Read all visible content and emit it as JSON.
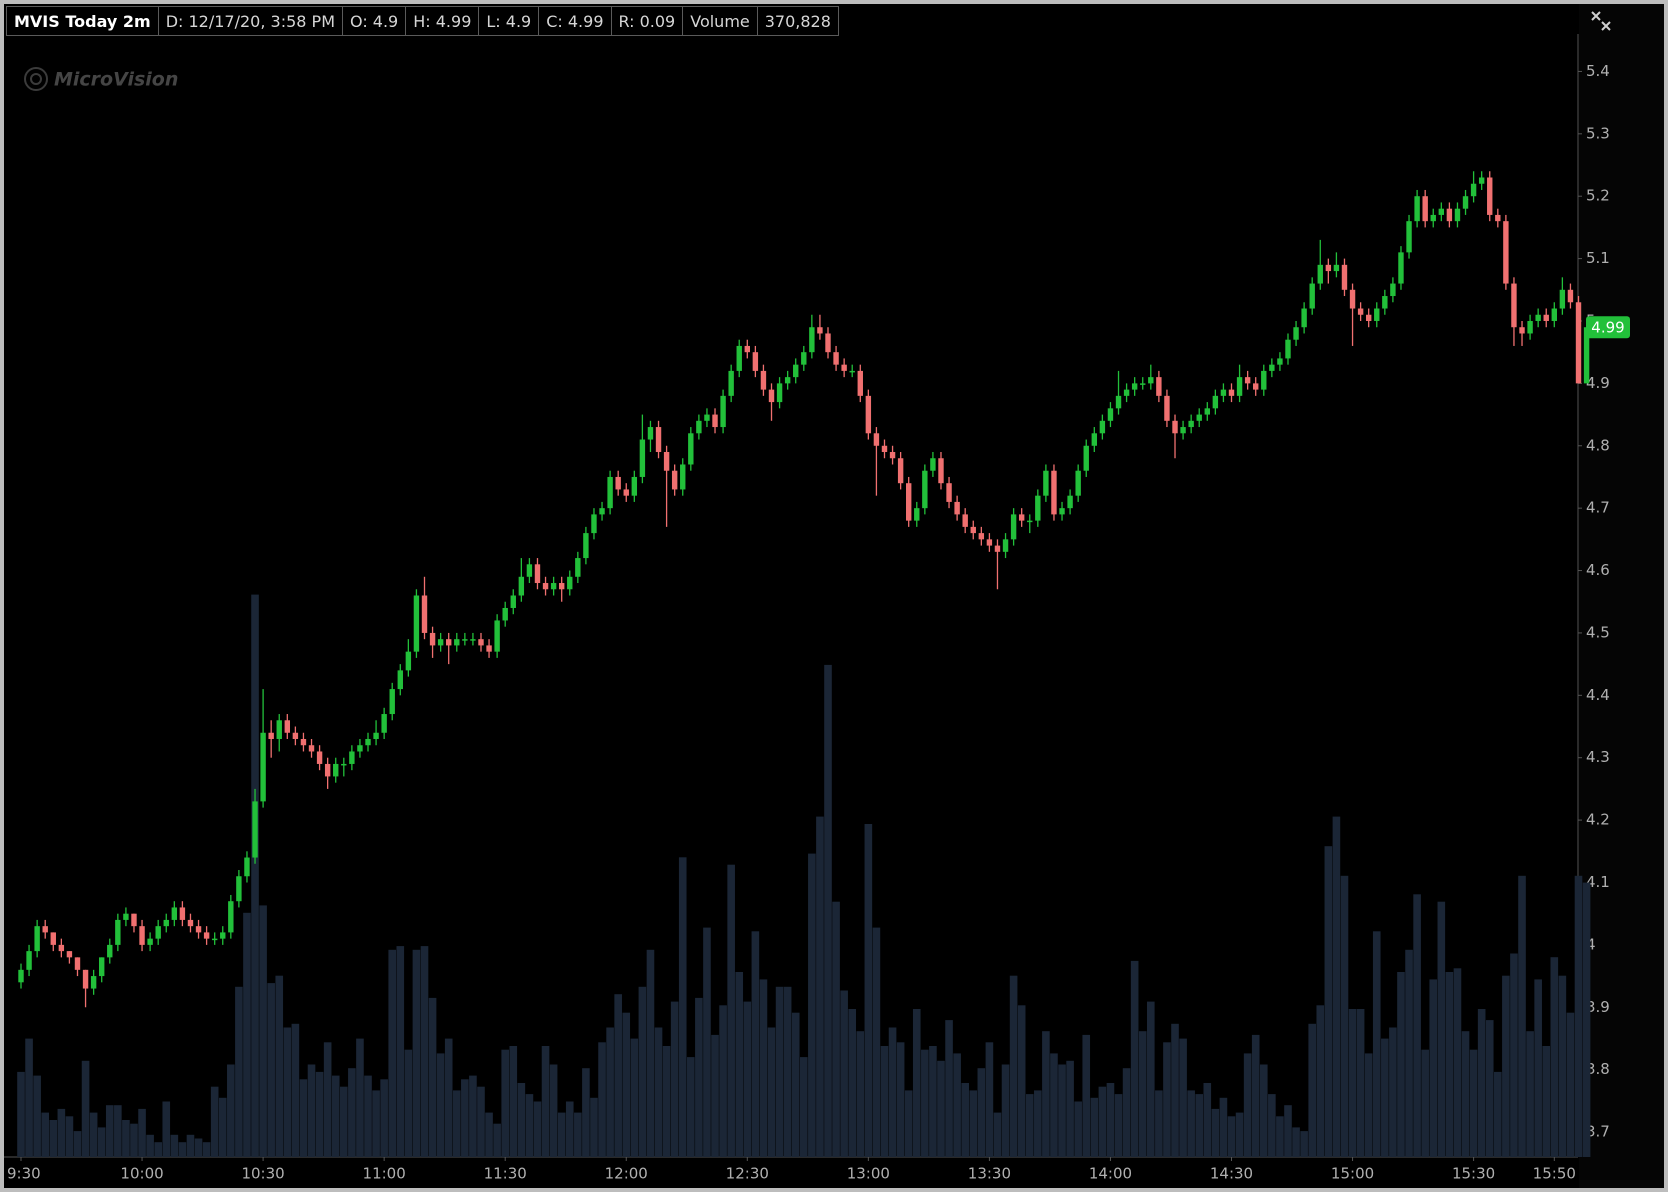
{
  "header": [
    "MVIS Today 2m",
    "D: 12/17/20, 3:58 PM",
    "O: 4.9",
    "H: 4.99",
    "L: 4.9",
    "C: 4.99",
    "R: 0.09",
    "Volume",
    "370,828"
  ],
  "chart_data": {
    "type": "candlestick",
    "watermark": "MicroVision",
    "up_color": "#22c03a",
    "down_color": "#f07070",
    "volume_color": "#1b2636",
    "ylim": [
      3.66,
      5.46
    ],
    "yticks": [
      5.4,
      5.3,
      5.2,
      5.1,
      5,
      4.9,
      4.8,
      4.7,
      4.6,
      4.5,
      4.4,
      4.3,
      4.2,
      4.1,
      4,
      3.9,
      3.8,
      3.7
    ],
    "categories": [
      "9:30",
      null,
      null,
      null,
      null,
      null,
      null,
      null,
      null,
      null,
      null,
      null,
      null,
      null,
      null,
      "10:00",
      null,
      null,
      null,
      null,
      null,
      null,
      null,
      null,
      null,
      null,
      null,
      null,
      null,
      null,
      "10:30",
      null,
      null,
      null,
      null,
      null,
      null,
      null,
      null,
      null,
      null,
      null,
      null,
      null,
      null,
      "11:00",
      null,
      null,
      null,
      null,
      null,
      null,
      null,
      null,
      null,
      null,
      null,
      null,
      null,
      null,
      "11:30",
      null,
      null,
      null,
      null,
      null,
      null,
      null,
      null,
      null,
      null,
      null,
      null,
      null,
      null,
      "12:00",
      null,
      null,
      null,
      null,
      null,
      null,
      null,
      null,
      null,
      null,
      null,
      null,
      null,
      null,
      "12:30",
      null,
      null,
      null,
      null,
      null,
      null,
      null,
      null,
      null,
      null,
      null,
      null,
      null,
      null,
      "13:00",
      null,
      null,
      null,
      null,
      null,
      null,
      null,
      null,
      null,
      null,
      null,
      null,
      null,
      null,
      "13:30",
      null,
      null,
      null,
      null,
      null,
      null,
      null,
      null,
      null,
      null,
      null,
      null,
      null,
      null,
      "14:00",
      null,
      null,
      null,
      null,
      null,
      null,
      null,
      null,
      null,
      null,
      null,
      null,
      null,
      null,
      "14:30",
      null,
      null,
      null,
      null,
      null,
      null,
      null,
      null,
      null,
      null,
      null,
      null,
      null,
      null,
      "15:00",
      null,
      null,
      null,
      null,
      null,
      null,
      null,
      null,
      null,
      null,
      null,
      null,
      null,
      null,
      "15:30",
      null,
      null,
      null,
      null,
      null,
      null,
      null,
      null,
      null,
      "15:50",
      null,
      null,
      null,
      null
    ],
    "open": [
      3.94,
      3.96,
      3.99,
      4.03,
      4.02,
      4.0,
      3.99,
      3.98,
      3.96,
      3.93,
      3.95,
      3.98,
      4.0,
      4.04,
      4.05,
      4.03,
      4.0,
      4.01,
      4.03,
      4.04,
      4.06,
      4.04,
      4.03,
      4.02,
      4.01,
      4.01,
      4.02,
      4.07,
      4.11,
      4.14,
      4.23,
      4.34,
      4.33,
      4.36,
      4.34,
      4.33,
      4.32,
      4.31,
      4.29,
      4.27,
      4.29,
      4.29,
      4.31,
      4.32,
      4.33,
      4.34,
      4.37,
      4.41,
      4.44,
      4.47,
      4.56,
      4.5,
      4.48,
      4.49,
      4.48,
      4.49,
      4.49,
      4.49,
      4.48,
      4.47,
      4.52,
      4.54,
      4.56,
      4.59,
      4.61,
      4.58,
      4.57,
      4.58,
      4.57,
      4.59,
      4.62,
      4.66,
      4.69,
      4.7,
      4.75,
      4.73,
      4.72,
      4.75,
      4.81,
      4.83,
      4.79,
      4.76,
      4.73,
      4.77,
      4.82,
      4.84,
      4.85,
      4.83,
      4.88,
      4.92,
      4.96,
      4.95,
      4.92,
      4.89,
      4.87,
      4.9,
      4.91,
      4.93,
      4.95,
      4.99,
      4.98,
      4.95,
      4.93,
      4.92,
      4.92,
      4.88,
      4.82,
      4.8,
      4.79,
      4.78,
      4.74,
      4.68,
      4.7,
      4.76,
      4.78,
      4.74,
      4.71,
      4.69,
      4.67,
      4.66,
      4.65,
      4.64,
      4.63,
      4.65,
      4.69,
      4.68,
      4.68,
      4.72,
      4.76,
      4.69,
      4.7,
      4.72,
      4.76,
      4.8,
      4.82,
      4.84,
      4.86,
      4.88,
      4.89,
      4.9,
      4.9,
      4.91,
      4.88,
      4.84,
      4.82,
      4.83,
      4.84,
      4.85,
      4.86,
      4.88,
      4.89,
      4.88,
      4.91,
      4.9,
      4.89,
      4.92,
      4.93,
      4.94,
      4.97,
      4.99,
      5.02,
      5.06,
      5.09,
      5.08,
      5.09,
      5.05,
      5.02,
      5.01,
      5.0,
      5.02,
      5.04,
      5.06,
      5.11,
      5.16,
      5.2,
      5.16,
      5.17,
      5.18,
      5.16,
      5.18,
      5.2,
      5.22,
      5.23,
      5.17,
      5.16,
      5.06,
      4.99,
      4.98,
      5.0,
      5.01,
      5.0,
      5.02,
      5.05,
      5.03,
      4.9
    ],
    "high": [
      3.97,
      4.0,
      4.04,
      4.04,
      4.02,
      4.01,
      3.99,
      3.98,
      3.96,
      3.96,
      3.98,
      4.01,
      4.05,
      4.06,
      4.05,
      4.04,
      4.02,
      4.04,
      4.05,
      4.07,
      4.07,
      4.05,
      4.04,
      4.03,
      4.02,
      4.03,
      4.08,
      4.12,
      4.15,
      4.25,
      4.41,
      4.36,
      4.37,
      4.37,
      4.35,
      4.34,
      4.33,
      4.32,
      4.3,
      4.3,
      4.3,
      4.32,
      4.33,
      4.34,
      4.36,
      4.38,
      4.42,
      4.45,
      4.49,
      4.57,
      4.59,
      4.51,
      4.5,
      4.5,
      4.5,
      4.5,
      4.5,
      4.5,
      4.49,
      4.53,
      4.55,
      4.57,
      4.62,
      4.62,
      4.62,
      4.59,
      4.59,
      4.59,
      4.6,
      4.63,
      4.67,
      4.7,
      4.71,
      4.76,
      4.76,
      4.74,
      4.76,
      4.85,
      4.84,
      4.84,
      4.8,
      4.77,
      4.78,
      4.83,
      4.85,
      4.86,
      4.86,
      4.89,
      4.93,
      4.97,
      4.97,
      4.96,
      4.93,
      4.9,
      4.91,
      4.92,
      4.94,
      4.96,
      5.01,
      5.01,
      4.99,
      4.96,
      4.94,
      4.93,
      4.93,
      4.89,
      4.83,
      4.81,
      4.8,
      4.79,
      4.75,
      4.71,
      4.77,
      4.79,
      4.79,
      4.75,
      4.72,
      4.7,
      4.68,
      4.67,
      4.66,
      4.65,
      4.66,
      4.7,
      4.7,
      4.69,
      4.73,
      4.77,
      4.77,
      4.71,
      4.73,
      4.77,
      4.81,
      4.83,
      4.85,
      4.87,
      4.92,
      4.9,
      4.91,
      4.91,
      4.93,
      4.92,
      4.89,
      4.85,
      4.84,
      4.85,
      4.86,
      4.87,
      4.89,
      4.9,
      4.9,
      4.93,
      4.92,
      4.91,
      4.93,
      4.94,
      4.95,
      4.98,
      5.0,
      5.03,
      5.07,
      5.13,
      5.1,
      5.11,
      5.1,
      5.06,
      5.03,
      5.02,
      5.03,
      5.05,
      5.07,
      5.12,
      5.17,
      5.21,
      5.21,
      5.18,
      5.19,
      5.19,
      5.19,
      5.21,
      5.24,
      5.24,
      5.24,
      5.18,
      5.17,
      5.07,
      5.0,
      5.01,
      5.02,
      5.02,
      5.03,
      5.07,
      5.06,
      5.04,
      4.99
    ],
    "low": [
      3.93,
      3.95,
      3.98,
      4.01,
      3.99,
      3.98,
      3.97,
      3.95,
      3.9,
      3.92,
      3.94,
      3.97,
      3.99,
      4.03,
      4.02,
      3.99,
      3.99,
      4.0,
      4.02,
      4.03,
      4.03,
      4.02,
      4.01,
      4.0,
      4.0,
      4.0,
      4.01,
      4.06,
      4.1,
      4.13,
      4.22,
      4.3,
      4.31,
      4.33,
      4.32,
      4.31,
      4.3,
      4.28,
      4.25,
      4.26,
      4.27,
      4.28,
      4.3,
      4.31,
      4.32,
      4.33,
      4.36,
      4.4,
      4.43,
      4.46,
      4.49,
      4.46,
      4.47,
      4.45,
      4.47,
      4.48,
      4.48,
      4.47,
      4.46,
      4.46,
      4.51,
      4.53,
      4.55,
      4.58,
      4.57,
      4.56,
      4.56,
      4.55,
      4.56,
      4.58,
      4.61,
      4.65,
      4.68,
      4.69,
      4.72,
      4.71,
      4.71,
      4.74,
      4.79,
      4.78,
      4.67,
      4.72,
      4.72,
      4.76,
      4.81,
      4.83,
      4.82,
      4.82,
      4.87,
      4.91,
      4.94,
      4.91,
      4.88,
      4.84,
      4.86,
      4.89,
      4.9,
      4.92,
      4.94,
      4.97,
      4.94,
      4.92,
      4.91,
      4.91,
      4.87,
      4.81,
      4.72,
      4.78,
      4.77,
      4.73,
      4.67,
      4.67,
      4.69,
      4.75,
      4.73,
      4.7,
      4.68,
      4.66,
      4.65,
      4.64,
      4.63,
      4.57,
      4.62,
      4.64,
      4.67,
      4.66,
      4.67,
      4.71,
      4.68,
      4.68,
      4.69,
      4.71,
      4.75,
      4.79,
      4.81,
      4.83,
      4.85,
      4.87,
      4.88,
      4.89,
      4.89,
      4.87,
      4.83,
      4.78,
      4.81,
      4.82,
      4.83,
      4.84,
      4.85,
      4.87,
      4.87,
      4.87,
      4.89,
      4.88,
      4.88,
      4.91,
      4.92,
      4.93,
      4.96,
      4.98,
      5.01,
      5.05,
      5.06,
      5.07,
      5.04,
      4.96,
      5.0,
      4.99,
      4.99,
      5.01,
      5.03,
      5.05,
      5.1,
      5.15,
      5.15,
      5.15,
      5.16,
      5.15,
      5.15,
      5.17,
      5.19,
      5.21,
      5.16,
      5.15,
      5.05,
      4.96,
      4.96,
      4.97,
      4.99,
      4.99,
      4.99,
      5.01,
      5.02,
      4.9,
      4.9
    ],
    "close": [
      3.96,
      3.99,
      4.03,
      4.02,
      4.0,
      3.99,
      3.98,
      3.96,
      3.93,
      3.95,
      3.98,
      4.0,
      4.04,
      4.05,
      4.03,
      4.0,
      4.01,
      4.03,
      4.04,
      4.06,
      4.04,
      4.03,
      4.02,
      4.01,
      4.01,
      4.02,
      4.07,
      4.11,
      4.14,
      4.23,
      4.34,
      4.33,
      4.36,
      4.34,
      4.33,
      4.32,
      4.31,
      4.29,
      4.27,
      4.29,
      4.29,
      4.31,
      4.32,
      4.33,
      4.34,
      4.37,
      4.41,
      4.44,
      4.47,
      4.56,
      4.5,
      4.48,
      4.49,
      4.48,
      4.49,
      4.49,
      4.49,
      4.48,
      4.47,
      4.52,
      4.54,
      4.56,
      4.59,
      4.61,
      4.58,
      4.57,
      4.58,
      4.57,
      4.59,
      4.62,
      4.66,
      4.69,
      4.7,
      4.75,
      4.73,
      4.72,
      4.75,
      4.81,
      4.83,
      4.79,
      4.76,
      4.73,
      4.77,
      4.82,
      4.84,
      4.85,
      4.83,
      4.88,
      4.92,
      4.96,
      4.95,
      4.92,
      4.89,
      4.87,
      4.9,
      4.91,
      4.93,
      4.95,
      4.99,
      4.98,
      4.95,
      4.93,
      4.92,
      4.92,
      4.88,
      4.82,
      4.8,
      4.79,
      4.78,
      4.74,
      4.68,
      4.7,
      4.76,
      4.78,
      4.74,
      4.71,
      4.69,
      4.67,
      4.66,
      4.65,
      4.64,
      4.63,
      4.65,
      4.69,
      4.68,
      4.68,
      4.72,
      4.76,
      4.69,
      4.7,
      4.72,
      4.76,
      4.8,
      4.82,
      4.84,
      4.86,
      4.88,
      4.89,
      4.9,
      4.9,
      4.91,
      4.88,
      4.84,
      4.82,
      4.83,
      4.84,
      4.85,
      4.86,
      4.88,
      4.89,
      4.88,
      4.91,
      4.9,
      4.89,
      4.92,
      4.93,
      4.94,
      4.97,
      4.99,
      5.02,
      5.06,
      5.09,
      5.08,
      5.09,
      5.05,
      5.02,
      5.01,
      5.0,
      5.02,
      5.04,
      5.06,
      5.11,
      5.16,
      5.2,
      5.16,
      5.17,
      5.18,
      5.16,
      5.18,
      5.2,
      5.22,
      5.23,
      5.17,
      5.16,
      5.06,
      4.99,
      4.98,
      5.0,
      5.01,
      5.0,
      5.02,
      5.05,
      5.03,
      4.9,
      4.99
    ],
    "volume": [
      115000,
      160000,
      110000,
      60000,
      50000,
      65000,
      55000,
      35000,
      130000,
      60000,
      40000,
      70000,
      70000,
      50000,
      45000,
      65000,
      30000,
      20000,
      75000,
      30000,
      20000,
      30000,
      25000,
      20000,
      95000,
      80000,
      125000,
      230000,
      330000,
      760000,
      340000,
      235000,
      245000,
      175000,
      180000,
      105000,
      125000,
      115000,
      155000,
      110000,
      95000,
      120000,
      160000,
      110000,
      90000,
      105000,
      280000,
      285000,
      145000,
      280000,
      285000,
      215000,
      140000,
      160000,
      90000,
      105000,
      110000,
      95000,
      60000,
      45000,
      145000,
      150000,
      100000,
      85000,
      75000,
      150000,
      125000,
      60000,
      75000,
      60000,
      120000,
      80000,
      155000,
      175000,
      220000,
      195000,
      160000,
      230000,
      280000,
      175000,
      150000,
      210000,
      405000,
      135000,
      215000,
      310000,
      165000,
      205000,
      395000,
      250000,
      210000,
      305000,
      240000,
      175000,
      230000,
      230000,
      195000,
      135000,
      410000,
      460000,
      665000,
      345000,
      225000,
      200000,
      170000,
      450000,
      310000,
      150000,
      175000,
      155000,
      90000,
      200000,
      145000,
      150000,
      130000,
      185000,
      140000,
      100000,
      90000,
      120000,
      155000,
      60000,
      125000,
      245000,
      205000,
      85000,
      90000,
      170000,
      140000,
      125000,
      130000,
      75000,
      165000,
      80000,
      95000,
      100000,
      85000,
      120000,
      265000,
      170000,
      210000,
      90000,
      155000,
      180000,
      160000,
      90000,
      85000,
      100000,
      65000,
      80000,
      55000,
      60000,
      140000,
      165000,
      125000,
      85000,
      55000,
      70000,
      40000,
      35000,
      180000,
      205000,
      420000,
      460000,
      380000,
      200000,
      200000,
      140000,
      305000,
      160000,
      175000,
      250000,
      280000,
      355000,
      145000,
      240000,
      345000,
      250000,
      255000,
      170000,
      145000,
      200000,
      185000,
      115000,
      245000,
      275000,
      380000,
      170000,
      240000,
      150000,
      270000,
      245000,
      195000,
      380000,
      370828
    ]
  }
}
